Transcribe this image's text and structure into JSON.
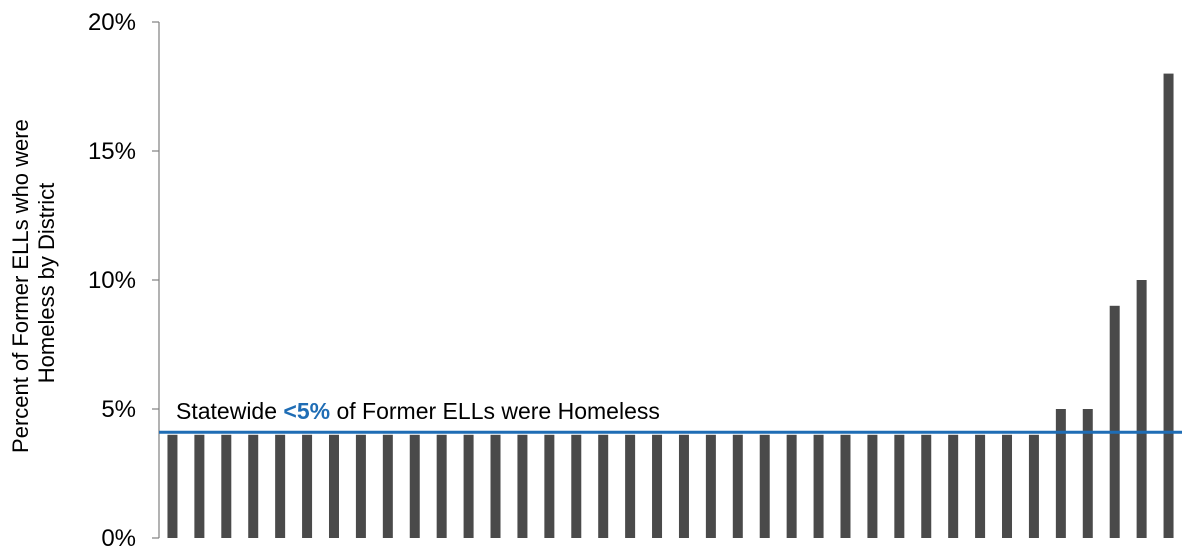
{
  "chart_data": {
    "type": "bar",
    "ylabel_lines": [
      "Percent of Former ELLs who were",
      "Homeless by District"
    ],
    "ylim": [
      0,
      20
    ],
    "yticks": [
      {
        "value": 0,
        "label": "0%"
      },
      {
        "value": 5,
        "label": "5%"
      },
      {
        "value": 10,
        "label": "10%"
      },
      {
        "value": 15,
        "label": "15%"
      },
      {
        "value": 20,
        "label": "20%"
      }
    ],
    "values": [
      4,
      4,
      4,
      4,
      4,
      4,
      4,
      4,
      4,
      4,
      4,
      4,
      4,
      4,
      4,
      4,
      4,
      4,
      4,
      4,
      4,
      4,
      4,
      4,
      4,
      4,
      4,
      4,
      4,
      4,
      4,
      4,
      4,
      5,
      5,
      9,
      10,
      18
    ],
    "bar_color": "#4a4a4a",
    "reference_line": {
      "value": 4.1,
      "color": "#1f6db5",
      "annotation_pre": "Statewide ",
      "annotation_highlight": "<5%",
      "annotation_post": " of Former ELLs were Homeless"
    },
    "grid": false
  }
}
